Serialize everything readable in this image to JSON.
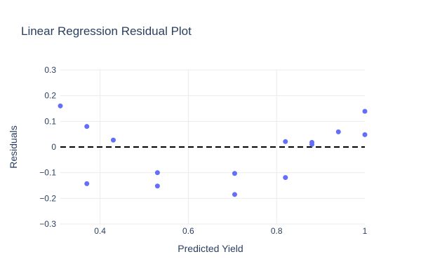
{
  "chart_data": {
    "type": "scatter",
    "title": "Linear Regression Residual Plot",
    "xlabel": "Predicted Yield",
    "ylabel": "Residuals",
    "xlim": [
      0.31,
      1.0
    ],
    "ylim": [
      -0.3,
      0.3
    ],
    "x_ticks": [
      {
        "value": 0.4,
        "label": "0.4"
      },
      {
        "value": 0.6,
        "label": "0.6"
      },
      {
        "value": 0.8,
        "label": "0.8"
      },
      {
        "value": 1.0,
        "label": "1"
      }
    ],
    "y_ticks": [
      {
        "value": 0.3,
        "label": "0.3"
      },
      {
        "value": 0.2,
        "label": "0.2"
      },
      {
        "value": 0.1,
        "label": "0.1"
      },
      {
        "value": 0.0,
        "label": "0"
      },
      {
        "value": -0.1,
        "label": "−0.1"
      },
      {
        "value": -0.2,
        "label": "−0.2"
      },
      {
        "value": -0.3,
        "label": "−0.3"
      }
    ],
    "grid": true,
    "reference_line": {
      "y": 0,
      "style": "dashed",
      "color": "#000000"
    },
    "marker_color": "#636efa",
    "points": [
      {
        "x": 0.31,
        "y": 0.16
      },
      {
        "x": 0.37,
        "y": 0.08
      },
      {
        "x": 0.37,
        "y": -0.143
      },
      {
        "x": 0.43,
        "y": 0.027
      },
      {
        "x": 0.53,
        "y": -0.1
      },
      {
        "x": 0.53,
        "y": -0.152
      },
      {
        "x": 0.705,
        "y": -0.103
      },
      {
        "x": 0.705,
        "y": -0.185
      },
      {
        "x": 0.82,
        "y": 0.021
      },
      {
        "x": 0.82,
        "y": -0.119
      },
      {
        "x": 0.88,
        "y": 0.018
      },
      {
        "x": 0.88,
        "y": 0.01
      },
      {
        "x": 0.94,
        "y": 0.059
      },
      {
        "x": 1.0,
        "y": 0.139
      },
      {
        "x": 1.0,
        "y": 0.048
      }
    ]
  }
}
